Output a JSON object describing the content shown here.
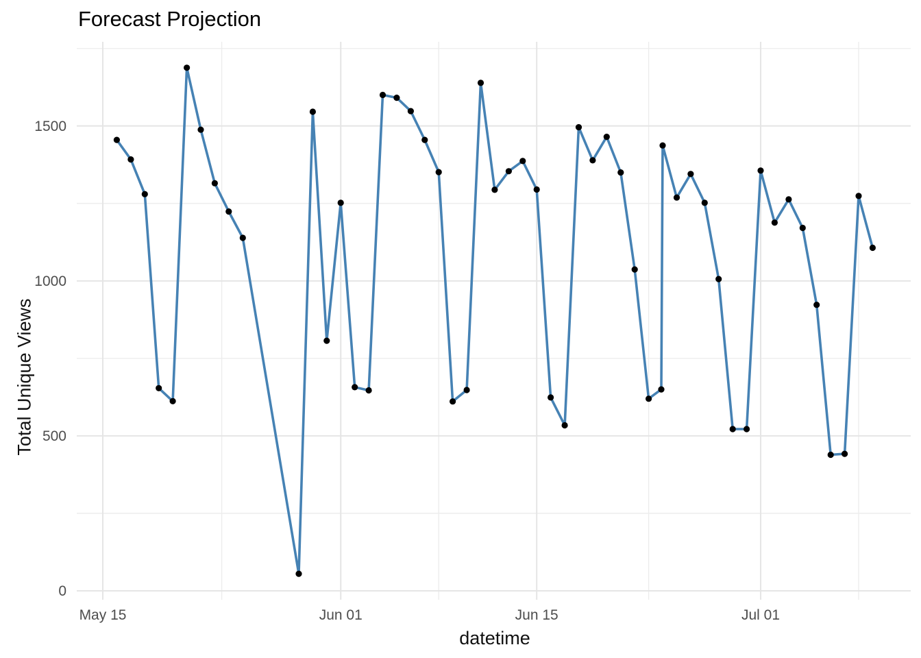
{
  "chart_data": {
    "type": "line",
    "title": "Forecast Projection",
    "xlabel": "datetime",
    "ylabel": "Total Unique Views",
    "legend": "none",
    "grid": "on",
    "marker": "point",
    "xlim_days_from_may15": [
      -1.9,
      57.7
    ],
    "ylim": [
      -29,
      1772
    ],
    "x_axis": {
      "major_ticks": [
        {
          "day": 0,
          "label": "May 15"
        },
        {
          "day": 17,
          "label": "Jun 01"
        },
        {
          "day": 31,
          "label": "Jun 15"
        },
        {
          "day": 47,
          "label": "Jul 01"
        }
      ],
      "minor_tick_days": [
        8.5,
        24,
        39,
        54
      ]
    },
    "y_axis": {
      "major_ticks": [
        0,
        500,
        1000,
        1500
      ],
      "minor_ticks": [
        250,
        750,
        1250,
        1750
      ]
    },
    "points": [
      {
        "day": 1,
        "date": "May 16",
        "value": 1455
      },
      {
        "day": 2,
        "date": "May 17",
        "value": 1392
      },
      {
        "day": 3,
        "date": "May 18",
        "value": 1280
      },
      {
        "day": 4,
        "date": "May 19",
        "value": 654
      },
      {
        "day": 5,
        "date": "May 20",
        "value": 612
      },
      {
        "day": 6,
        "date": "May 21",
        "value": 1688
      },
      {
        "day": 7,
        "date": "May 22",
        "value": 1488
      },
      {
        "day": 8,
        "date": "May 23",
        "value": 1315
      },
      {
        "day": 9,
        "date": "May 24",
        "value": 1224
      },
      {
        "day": 10,
        "date": "May 25",
        "value": 1139
      },
      {
        "day": 14,
        "date": "May 29",
        "value": 55
      },
      {
        "day": 15,
        "date": "May 30",
        "value": 1546
      },
      {
        "day": 16,
        "date": "May 31",
        "value": 807
      },
      {
        "day": 17,
        "date": "Jun 01",
        "value": 1252
      },
      {
        "day": 18,
        "date": "Jun 02",
        "value": 657
      },
      {
        "day": 19,
        "date": "Jun 03",
        "value": 647
      },
      {
        "day": 20,
        "date": "Jun 04",
        "value": 1600
      },
      {
        "day": 21,
        "date": "Jun 05",
        "value": 1591
      },
      {
        "day": 22,
        "date": "Jun 06",
        "value": 1548
      },
      {
        "day": 23,
        "date": "Jun 07",
        "value": 1455
      },
      {
        "day": 24,
        "date": "Jun 08",
        "value": 1351
      },
      {
        "day": 25,
        "date": "Jun 09",
        "value": 611
      },
      {
        "day": 26,
        "date": "Jun 10",
        "value": 648
      },
      {
        "day": 27,
        "date": "Jun 11",
        "value": 1639
      },
      {
        "day": 28,
        "date": "Jun 12",
        "value": 1294
      },
      {
        "day": 29,
        "date": "Jun 13",
        "value": 1354
      },
      {
        "day": 30,
        "date": "Jun 14",
        "value": 1387
      },
      {
        "day": 31,
        "date": "Jun 15",
        "value": 1295
      },
      {
        "day": 32,
        "date": "Jun 16",
        "value": 624
      },
      {
        "day": 33,
        "date": "Jun 17",
        "value": 534
      },
      {
        "day": 34,
        "date": "Jun 18",
        "value": 1496
      },
      {
        "day": 35,
        "date": "Jun 19",
        "value": 1389
      },
      {
        "day": 36,
        "date": "Jun 20",
        "value": 1465
      },
      {
        "day": 37,
        "date": "Jun 21",
        "value": 1350
      },
      {
        "day": 38,
        "date": "Jun 22",
        "value": 1037
      },
      {
        "day": 39,
        "date": "Jun 23",
        "value": 620
      },
      {
        "day": 39.9,
        "date": "Jun 24",
        "value": 650
      },
      {
        "day": 40,
        "date": "Jun 24",
        "value": 1437
      },
      {
        "day": 41,
        "date": "Jun 25",
        "value": 1269
      },
      {
        "day": 42,
        "date": "Jun 26",
        "value": 1345
      },
      {
        "day": 43,
        "date": "Jun 27",
        "value": 1252
      },
      {
        "day": 44,
        "date": "Jun 28",
        "value": 1006
      },
      {
        "day": 45,
        "date": "Jun 29",
        "value": 522
      },
      {
        "day": 46,
        "date": "Jun 30",
        "value": 522
      },
      {
        "day": 47,
        "date": "Jul 01",
        "value": 1356
      },
      {
        "day": 48,
        "date": "Jul 02",
        "value": 1188
      },
      {
        "day": 49,
        "date": "Jul 03",
        "value": 1263
      },
      {
        "day": 50,
        "date": "Jul 04",
        "value": 1171
      },
      {
        "day": 51,
        "date": "Jul 05",
        "value": 923
      },
      {
        "day": 52,
        "date": "Jul 06",
        "value": 439
      },
      {
        "day": 53,
        "date": "Jul 07",
        "value": 442
      },
      {
        "day": 54,
        "date": "Jul 08",
        "value": 1274
      },
      {
        "day": 55,
        "date": "Jul 09",
        "value": 1107
      }
    ],
    "style": {
      "line_color": "#4682B4",
      "point_color": "#000000",
      "grid_major_color": "#E5E5E5",
      "grid_minor_color": "#ECECEC",
      "tick_label_color": "#4D4D4D",
      "title_color": "#000000",
      "axis_title_color": "#111111",
      "background": "#FFFFFF"
    }
  }
}
